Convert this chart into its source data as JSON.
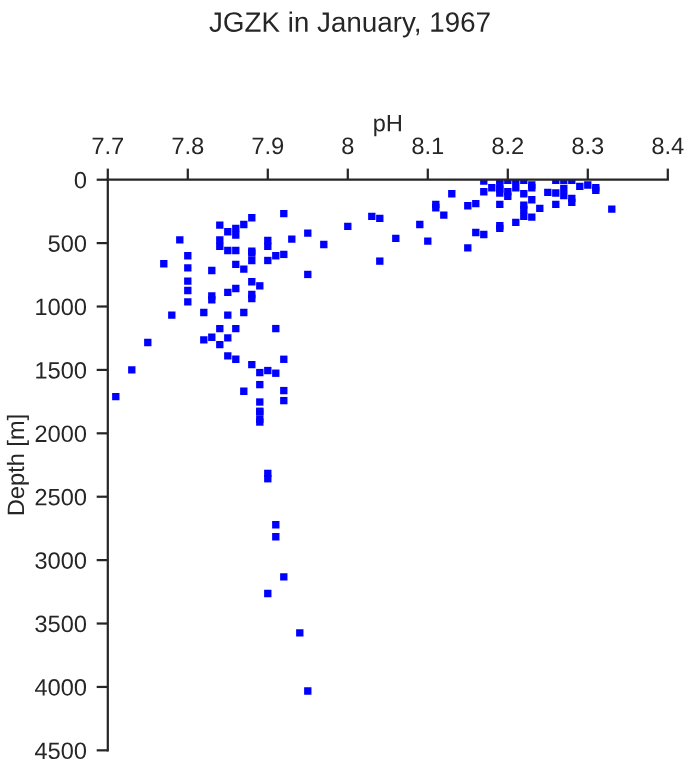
{
  "chart_data": {
    "type": "scatter",
    "title": "JGZK in January, 1967",
    "xlabel": "pH",
    "ylabel": "Depth [m]",
    "xlim": [
      7.7,
      8.4
    ],
    "xticks": [
      7.7,
      7.8,
      7.9,
      8,
      8.1,
      8.2,
      8.3,
      8.4
    ],
    "ylim": [
      4500,
      0
    ],
    "yticks": [
      0,
      500,
      1000,
      1500,
      2000,
      2500,
      3000,
      3500,
      4000,
      4500
    ],
    "marker": "square",
    "grid": false,
    "legend": false,
    "series": [
      {
        "color": "#0000ff",
        "x": [
          7.84,
          7.88,
          7.92,
          7.87,
          7.86,
          7.86,
          7.79,
          7.84,
          7.84,
          7.85,
          7.88,
          7.88,
          7.9,
          7.9,
          7.91,
          7.92,
          7.93,
          7.95,
          7.97,
          8.0,
          8.03,
          8.04,
          8.04,
          7.95,
          7.9,
          7.88,
          7.86,
          7.85,
          7.8,
          7.77,
          7.8,
          7.87,
          7.86,
          7.83,
          7.8,
          7.8,
          7.8,
          7.78,
          7.82,
          7.83,
          7.83,
          7.85,
          7.86,
          7.88,
          7.89,
          7.88,
          7.88,
          7.85,
          7.87,
          7.84,
          7.86,
          7.91,
          7.82,
          7.83,
          7.84,
          7.85,
          7.75,
          7.85,
          7.86,
          7.88,
          7.92,
          7.89,
          7.9,
          7.91,
          7.73,
          7.87,
          7.89,
          7.92,
          7.92,
          7.89,
          7.89,
          7.89,
          7.89,
          7.71,
          7.89,
          7.9,
          7.9,
          7.91,
          7.91,
          7.92,
          7.9,
          7.94,
          7.95,
          8.06,
          8.09,
          8.1,
          8.11,
          8.11,
          8.12,
          8.13,
          8.15,
          8.16,
          8.15,
          8.16,
          8.17,
          8.17,
          8.18,
          8.17,
          8.19,
          8.19,
          8.19,
          8.19,
          8.19,
          8.19,
          8.19,
          8.2,
          8.2,
          8.2,
          8.21,
          8.21,
          8.21,
          8.22,
          8.22,
          8.22,
          8.22,
          8.22,
          8.23,
          8.23,
          8.23,
          8.23,
          8.24,
          8.25,
          8.26,
          8.26,
          8.26,
          8.27,
          8.27,
          8.27,
          8.28,
          8.28,
          8.28,
          8.29,
          8.3,
          8.31,
          8.31,
          8.33
        ],
        "values": [
          358,
          300,
          268,
          353,
          384,
          437,
          474,
          474,
          526,
          410,
          563,
          579,
          479,
          526,
          600,
          589,
          468,
          421,
          511,
          368,
          289,
          305,
          642,
          747,
          637,
          637,
          558,
          558,
          600,
          663,
          695,
          705,
          668,
          716,
          800,
          874,
          963,
          1068,
          1047,
          916,
          947,
          889,
          858,
          805,
          837,
          905,
          937,
          1068,
          1047,
          1174,
          1174,
          1174,
          1263,
          1242,
          1300,
          1247,
          1284,
          1389,
          1416,
          1458,
          1416,
          1521,
          1505,
          1526,
          1500,
          1668,
          1616,
          1663,
          1742,
          1753,
          1826,
          1889,
          1911,
          1711,
          1832,
          2316,
          2358,
          2721,
          2816,
          3132,
          3263,
          3574,
          4032,
          463,
          353,
          484,
          195,
          221,
          279,
          111,
          205,
          189,
          537,
          416,
          432,
          11,
          63,
          95,
          5,
          42,
          74,
          105,
          195,
          363,
          384,
          5,
          95,
          132,
          5,
          63,
          337,
          5,
          111,
          200,
          237,
          289,
          42,
          63,
          158,
          295,
          226,
          100,
          5,
          105,
          195,
          5,
          68,
          126,
          5,
          147,
          179,
          53,
          42,
          63,
          84,
          232
        ]
      }
    ]
  }
}
